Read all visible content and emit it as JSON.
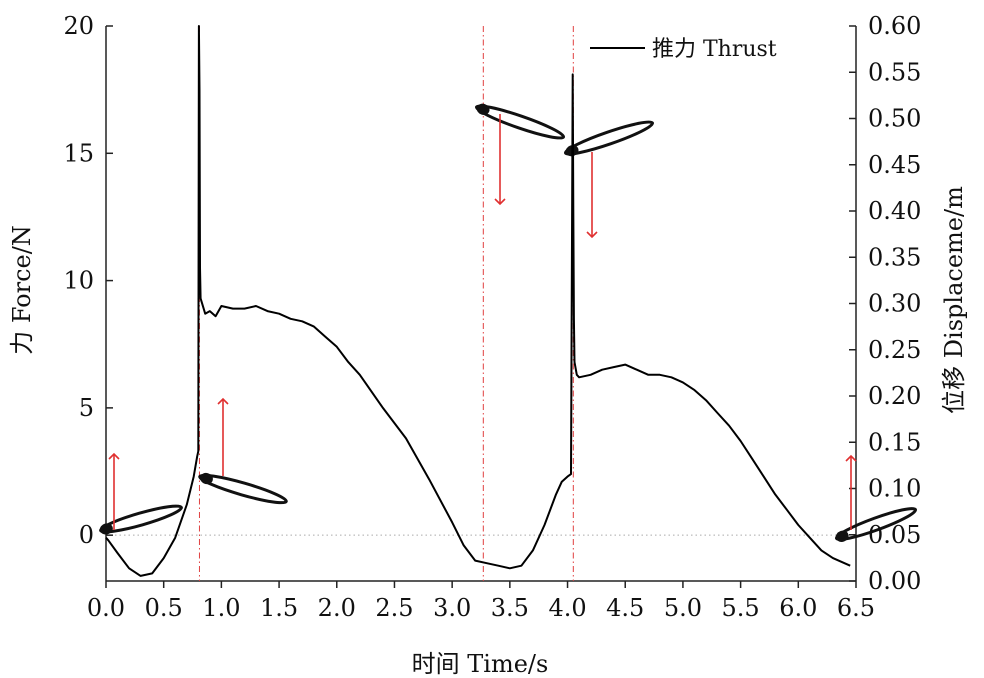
{
  "chart_data": {
    "type": "line",
    "xlabel": "时间 Time/s",
    "ylabel_left": "力 Force/N",
    "ylabel_right": "位移 Displaceme/m",
    "xlim": [
      0,
      6.5
    ],
    "ylim_left": [
      -1.8,
      20
    ],
    "ylim_right": [
      0,
      0.6
    ],
    "x_ticks": [
      "0.0",
      "0.5",
      "1.0",
      "1.5",
      "2.0",
      "2.5",
      "3.0",
      "3.5",
      "4.0",
      "4.5",
      "5.0",
      "5.5",
      "6.0",
      "6.5"
    ],
    "y_ticks_left": [
      "0",
      "5",
      "10",
      "15",
      "20"
    ],
    "y_ticks_right": [
      "0.00",
      "0.05",
      "0.10",
      "0.15",
      "0.20",
      "0.25",
      "0.30",
      "0.35",
      "0.40",
      "0.45",
      "0.50",
      "0.55",
      "0.60"
    ],
    "legend_position": "top-right",
    "grid": false,
    "zero_line": true,
    "phase_markers_x": [
      0.81,
      3.27,
      4.05
    ],
    "series": [
      {
        "name": "推力 Thrust",
        "color": "#000000",
        "x": [
          0.0,
          0.02,
          0.1,
          0.2,
          0.3,
          0.4,
          0.5,
          0.6,
          0.7,
          0.76,
          0.79,
          0.8,
          0.805,
          0.81,
          0.815,
          0.82,
          0.86,
          0.9,
          0.95,
          1.0,
          1.1,
          1.2,
          1.3,
          1.4,
          1.5,
          1.6,
          1.7,
          1.8,
          1.9,
          2.0,
          2.1,
          2.2,
          2.4,
          2.6,
          2.8,
          3.0,
          3.1,
          3.2,
          3.3,
          3.4,
          3.5,
          3.6,
          3.7,
          3.8,
          3.9,
          3.95,
          4.0,
          4.03,
          4.04,
          4.045,
          4.05,
          4.055,
          4.06,
          4.08,
          4.1,
          4.2,
          4.3,
          4.4,
          4.5,
          4.6,
          4.7,
          4.8,
          4.9,
          5.0,
          5.1,
          5.2,
          5.3,
          5.4,
          5.5,
          5.6,
          5.7,
          5.8,
          5.9,
          6.0,
          6.1,
          6.2,
          6.3,
          6.4,
          6.45
        ],
        "values": [
          -0.1,
          -0.2,
          -0.7,
          -1.3,
          -1.6,
          -1.5,
          -0.9,
          -0.1,
          1.2,
          2.3,
          3.1,
          3.3,
          20.0,
          17.5,
          10.5,
          9.3,
          8.7,
          8.8,
          8.6,
          9.0,
          8.9,
          8.9,
          9.0,
          8.8,
          8.7,
          8.5,
          8.4,
          8.2,
          7.8,
          7.4,
          6.8,
          6.3,
          5.0,
          3.8,
          2.2,
          0.5,
          -0.4,
          -1.0,
          -1.1,
          -1.2,
          -1.3,
          -1.2,
          -0.6,
          0.4,
          1.6,
          2.1,
          2.3,
          2.4,
          13.5,
          18.1,
          12.8,
          8.5,
          6.8,
          6.3,
          6.2,
          6.3,
          6.5,
          6.6,
          6.7,
          6.5,
          6.3,
          6.3,
          6.2,
          6.0,
          5.7,
          5.3,
          4.8,
          4.3,
          3.7,
          3.0,
          2.3,
          1.6,
          1.0,
          0.4,
          -0.1,
          -0.6,
          -0.9,
          -1.1,
          -1.2
        ]
      }
    ]
  }
}
